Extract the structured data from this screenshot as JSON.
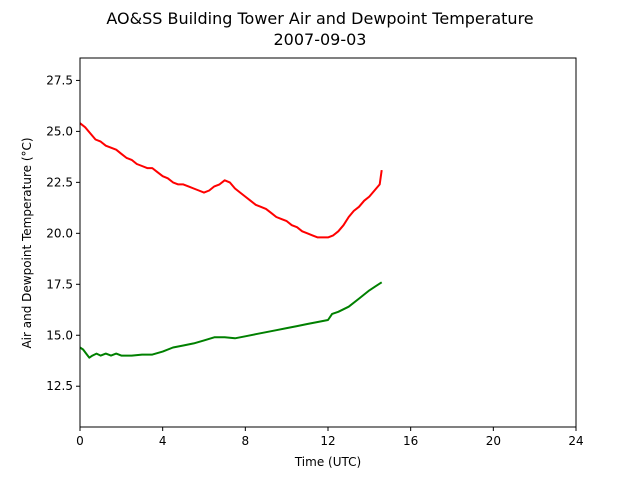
{
  "chart_data": {
    "type": "line",
    "title": "AO&SS Building Tower Air and Dewpoint Temperature",
    "subtitle": "2007-09-03",
    "xlabel": "Time (UTC)",
    "ylabel": "Air and Dewpoint Temperature (°C)",
    "xlim": [
      0,
      24
    ],
    "ylim": [
      10.5,
      28.6
    ],
    "xticks": [
      0,
      4,
      8,
      12,
      16,
      20,
      24
    ],
    "xtick_labels": [
      "0",
      "4",
      "8",
      "12",
      "16",
      "20",
      "24"
    ],
    "yticks": [
      12.5,
      15.0,
      17.5,
      20.0,
      22.5,
      25.0,
      27.5
    ],
    "ytick_labels": [
      "12.5",
      "15.0",
      "17.5",
      "20.0",
      "22.5",
      "25.0",
      "27.5"
    ],
    "grid": false,
    "series": [
      {
        "color": "#ff0000",
        "x": [
          0,
          0.25,
          0.5,
          0.75,
          1.0,
          1.25,
          1.5,
          1.75,
          2.0,
          2.25,
          2.5,
          2.75,
          3.0,
          3.25,
          3.5,
          3.75,
          4.0,
          4.25,
          4.5,
          4.75,
          5.0,
          5.25,
          5.5,
          5.75,
          6.0,
          6.25,
          6.5,
          6.75,
          7.0,
          7.25,
          7.5,
          7.75,
          8.0,
          8.25,
          8.5,
          8.75,
          9.0,
          9.25,
          9.5,
          9.75,
          10.0,
          10.25,
          10.5,
          10.75,
          11.0,
          11.25,
          11.5,
          11.75,
          12.0,
          12.25,
          12.5,
          12.75,
          13.0,
          13.25,
          13.5,
          13.75,
          14.0,
          14.25,
          14.5,
          14.6
        ],
        "y": [
          25.4,
          25.2,
          24.9,
          24.6,
          24.5,
          24.3,
          24.2,
          24.1,
          23.9,
          23.7,
          23.6,
          23.4,
          23.3,
          23.2,
          23.2,
          23.0,
          22.8,
          22.7,
          22.5,
          22.4,
          22.4,
          22.3,
          22.2,
          22.1,
          22.0,
          22.1,
          22.3,
          22.4,
          22.6,
          22.5,
          22.2,
          22.0,
          21.8,
          21.6,
          21.4,
          21.3,
          21.2,
          21.0,
          20.8,
          20.7,
          20.6,
          20.4,
          20.3,
          20.1,
          20.0,
          19.9,
          19.8,
          19.8,
          19.8,
          19.9,
          20.1,
          20.4,
          20.8,
          21.1,
          21.3,
          21.6,
          21.8,
          22.1,
          22.4,
          23.1
        ]
      },
      {
        "color": "#008000",
        "x": [
          0,
          0.15,
          0.3,
          0.45,
          0.6,
          0.8,
          1.0,
          1.25,
          1.5,
          1.75,
          2.0,
          2.5,
          3.0,
          3.5,
          4.0,
          4.5,
          5.0,
          5.5,
          6.0,
          6.5,
          7.0,
          7.5,
          8.0,
          8.5,
          9.0,
          9.5,
          10.0,
          10.5,
          11.0,
          11.5,
          12.0,
          12.2,
          12.5,
          13.0,
          13.5,
          14.0,
          14.3,
          14.6
        ],
        "y": [
          14.4,
          14.3,
          14.1,
          13.9,
          14.0,
          14.1,
          14.0,
          14.1,
          14.0,
          14.1,
          14.0,
          14.0,
          14.05,
          14.05,
          14.2,
          14.4,
          14.5,
          14.6,
          14.75,
          14.9,
          14.9,
          14.85,
          14.95,
          15.05,
          15.15,
          15.25,
          15.35,
          15.45,
          15.55,
          15.65,
          15.75,
          16.05,
          16.15,
          16.4,
          16.8,
          17.2,
          17.4,
          17.6
        ]
      }
    ]
  }
}
